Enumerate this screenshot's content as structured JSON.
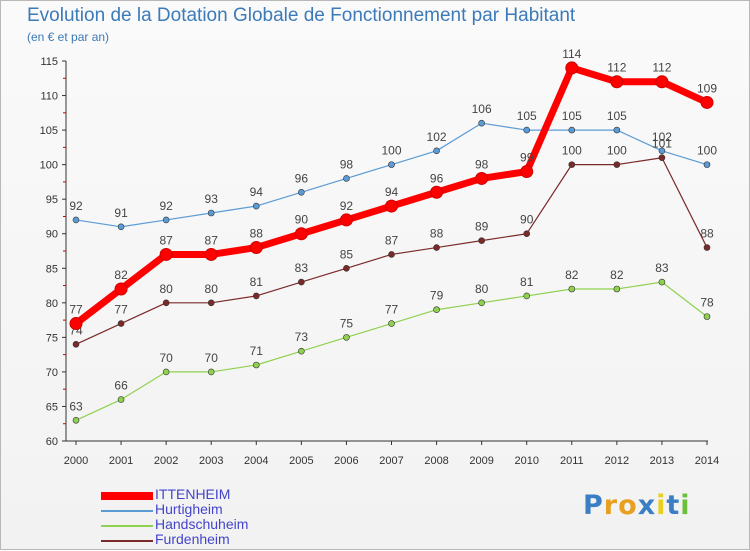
{
  "title": "Evolution de la Dotation Globale de Fonctionnement par Habitant",
  "subtitle": "(en € et par an)",
  "logo": {
    "text": "Proxiti",
    "letters": [
      "P",
      "r",
      "o",
      "x",
      "i",
      "t",
      "i"
    ],
    "letter_colors": [
      "#3a7fc4",
      "#e8a020",
      "#e8a020",
      "#3a7fc4",
      "#e8d020",
      "#3a7fc4",
      "#6cbf3c"
    ]
  },
  "chart_data": {
    "type": "line",
    "title": "Evolution de la Dotation Globale de Fonctionnement par Habitant",
    "subtitle": "(en € et par an)",
    "xlabel": "",
    "ylabel": "",
    "x": [
      "2000",
      "2001",
      "2002",
      "2003",
      "2004",
      "2005",
      "2006",
      "2007",
      "2008",
      "2009",
      "2010",
      "2011",
      "2012",
      "2013",
      "2014"
    ],
    "ylim": [
      60,
      115
    ],
    "yticks": [
      60,
      65,
      70,
      75,
      80,
      85,
      90,
      95,
      100,
      105,
      110,
      115
    ],
    "grid": false,
    "legend_position": "bottom-left",
    "series": [
      {
        "name": "Hurtigheim",
        "color": "#5b9bd5",
        "values": [
          92,
          91,
          92,
          93,
          94,
          96,
          98,
          100,
          102,
          106,
          105,
          105,
          105,
          102,
          100
        ]
      },
      {
        "name": "Handschuheim",
        "color": "#8fd14f",
        "values": [
          63,
          66,
          70,
          70,
          71,
          73,
          75,
          77,
          79,
          80,
          81,
          82,
          82,
          83,
          78
        ]
      },
      {
        "name": "Furdenheim",
        "color": "#7b2a2a",
        "values": [
          74,
          77,
          80,
          80,
          81,
          83,
          85,
          87,
          88,
          89,
          90,
          100,
          100,
          101,
          88
        ]
      },
      {
        "name": "ITTENHEIM",
        "color": "#ff0000",
        "values": [
          77,
          82,
          87,
          87,
          88,
          90,
          92,
          94,
          96,
          98,
          99,
          114,
          112,
          112,
          109
        ]
      }
    ]
  }
}
